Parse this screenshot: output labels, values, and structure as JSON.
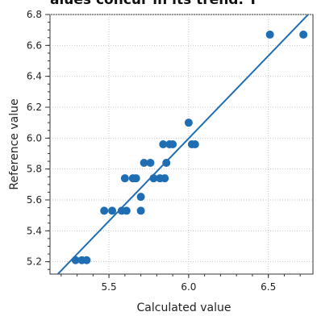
{
  "header": {
    "clipped_text": "alues concur in its trend. T"
  },
  "chart_data": {
    "type": "scatter",
    "title": "",
    "xlabel": "Calculated value",
    "ylabel": "Reference value",
    "xlim": [
      5.13,
      6.78
    ],
    "ylim": [
      5.12,
      6.8
    ],
    "x_ticks": [
      5.5,
      6.0,
      6.5
    ],
    "x_tick_labels": [
      "5.5",
      "6.0",
      "6.5"
    ],
    "y_ticks": [
      5.2,
      5.4,
      5.6,
      5.8,
      6.0,
      6.2,
      6.4,
      6.6,
      6.8
    ],
    "y_tick_labels": [
      "5.2",
      "5.4",
      "5.6",
      "5.8",
      "6.0",
      "6.2",
      "6.4",
      "6.6",
      "6.8"
    ],
    "grid": true,
    "point_color": "#1f6eb4",
    "line_color": "#1f6eb4",
    "points": [
      {
        "x": 5.29,
        "y": 5.21
      },
      {
        "x": 5.33,
        "y": 5.21
      },
      {
        "x": 5.36,
        "y": 5.21
      },
      {
        "x": 5.47,
        "y": 5.53
      },
      {
        "x": 5.52,
        "y": 5.53
      },
      {
        "x": 5.58,
        "y": 5.53
      },
      {
        "x": 5.61,
        "y": 5.53
      },
      {
        "x": 5.6,
        "y": 5.74
      },
      {
        "x": 5.65,
        "y": 5.74
      },
      {
        "x": 5.67,
        "y": 5.74
      },
      {
        "x": 5.7,
        "y": 5.62
      },
      {
        "x": 5.7,
        "y": 5.53
      },
      {
        "x": 5.72,
        "y": 5.84
      },
      {
        "x": 5.76,
        "y": 5.84
      },
      {
        "x": 5.78,
        "y": 5.74
      },
      {
        "x": 5.82,
        "y": 5.74
      },
      {
        "x": 5.85,
        "y": 5.74
      },
      {
        "x": 5.84,
        "y": 5.96
      },
      {
        "x": 5.86,
        "y": 5.84
      },
      {
        "x": 5.88,
        "y": 5.96
      },
      {
        "x": 5.9,
        "y": 5.96
      },
      {
        "x": 6.0,
        "y": 6.1
      },
      {
        "x": 6.02,
        "y": 5.96
      },
      {
        "x": 6.04,
        "y": 5.96
      },
      {
        "x": 6.51,
        "y": 6.67
      },
      {
        "x": 6.72,
        "y": 6.67
      }
    ],
    "fit_line": {
      "x": [
        5.16,
        6.75
      ],
      "y": [
        5.1,
        6.8
      ]
    }
  }
}
